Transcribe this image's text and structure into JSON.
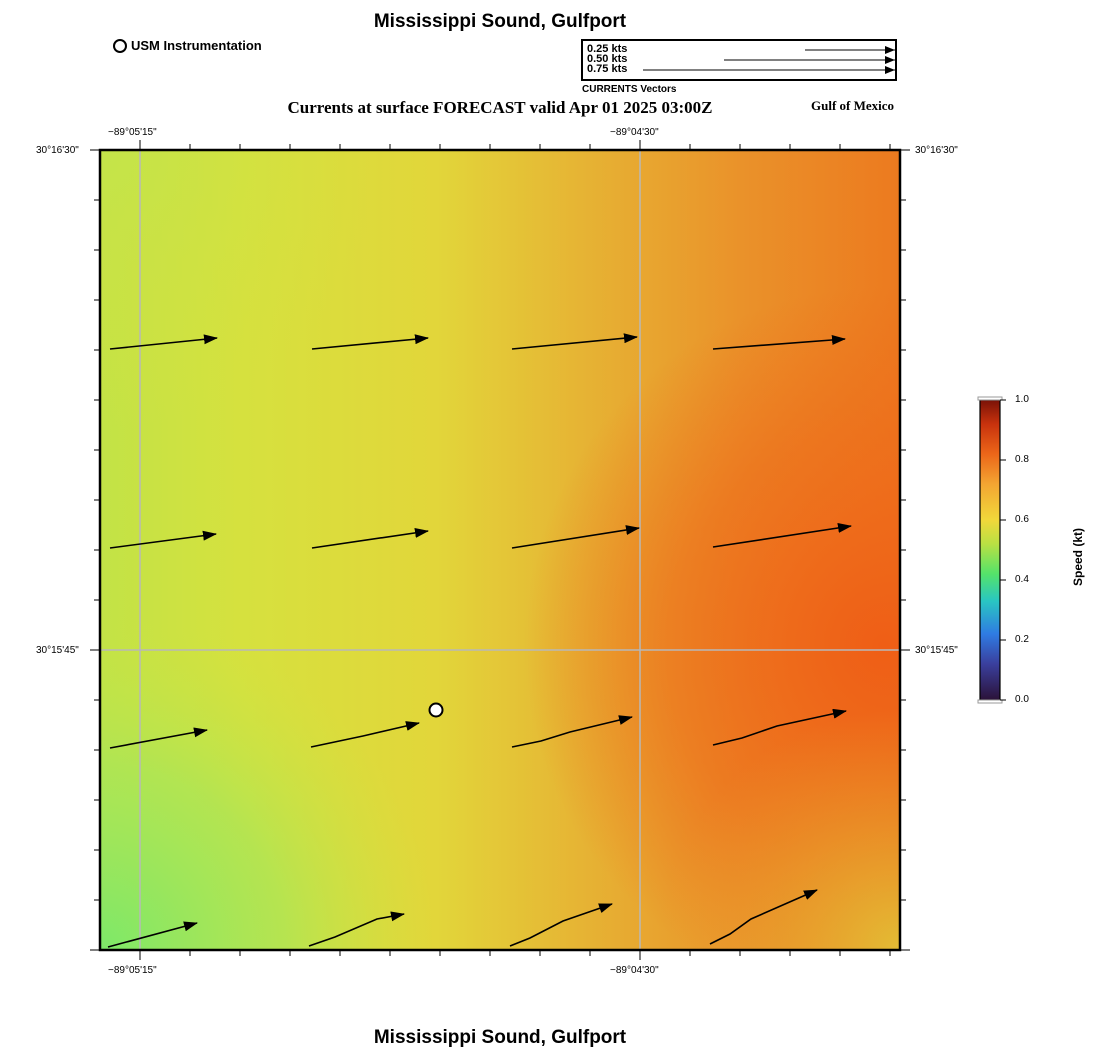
{
  "map": {
    "title": "Mississippi Sound, Gulfport",
    "subtitle": "Currents at surface FORECAST valid Apr 01 2025 03:00Z",
    "region_label": "Gulf of Mexico",
    "footer_title": "Mississippi Sound, Gulfport",
    "marker_legend": "USM Instrumentation"
  },
  "vector_legend": {
    "caption": "CURRENTS Vectors",
    "entries": [
      {
        "label": "0.25 kts",
        "speed": 0.25
      },
      {
        "label": "0.50 kts",
        "speed": 0.5
      },
      {
        "label": "0.75 kts",
        "speed": 0.75
      }
    ]
  },
  "axes": {
    "top_ticks": [
      "−89°05'15\"",
      "−89°04'30\""
    ],
    "bottom_ticks": [
      "−89°05'15\"",
      "−89°04'30\""
    ],
    "left_ticks": [
      "30°16'30\"",
      "30°15'45\""
    ],
    "right_ticks": [
      "30°16'30\"",
      "30°15'45\""
    ]
  },
  "colorbar": {
    "title": "Speed (kt)",
    "min": 0.0,
    "max": 1.0,
    "labels": [
      "1.0",
      "0.8",
      "0.6",
      "0.4",
      "0.2",
      "0.0"
    ],
    "colors": [
      "#2b1238",
      "#2f59c8",
      "#29c6c2",
      "#54e36a",
      "#b9e043",
      "#f1d83a",
      "#f3a532",
      "#ec6619",
      "#c8320d",
      "#7a1207"
    ]
  },
  "field_colors": {
    "green": "#82e866",
    "yellow_green": "#cde443",
    "yellow": "#e2df3a",
    "gold": "#e7b232",
    "orange": "#eb8a27",
    "red_orange": "#ee6a1a"
  }
}
